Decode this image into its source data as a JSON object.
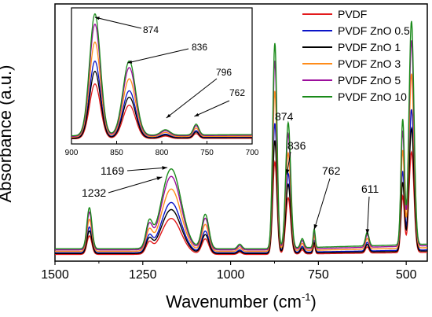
{
  "chart_data": {
    "type": "line",
    "xlabel": "Wavenumber",
    "xlabel_unit": "cm",
    "xlabel_unit_exp": "-1",
    "xlabel_close": ")",
    "ylabel": "Absorbance (a.u.)",
    "xlim": [
      1500,
      440
    ],
    "x_reversed": true,
    "x_ticks": [
      1500,
      1250,
      1000,
      750,
      500
    ],
    "y_ticks_shown": false,
    "legend_position": "top-right",
    "series": [
      {
        "name": "PVDF",
        "color": "#e31a1c",
        "scale": 0.45
      },
      {
        "name": "PVDF ZnO 0.5",
        "color": "#0a14c8",
        "scale": 0.63
      },
      {
        "name": "PVDF ZnO 1",
        "color": "#000000",
        "scale": 0.55
      },
      {
        "name": "PVDF ZnO 3",
        "color": "#ff8c1a",
        "scale": 0.78
      },
      {
        "name": "PVDF ZnO 5",
        "color": "#9c0e9c",
        "scale": 0.92
      },
      {
        "name": "PVDF ZnO 10",
        "color": "#1a8a1a",
        "scale": 1.0
      }
    ],
    "peaks": [
      {
        "x": 1402,
        "h": 0.18,
        "w": 7
      },
      {
        "x": 1232,
        "h": 0.1,
        "w": 9
      },
      {
        "x": 1169,
        "h": 0.35,
        "w": 28
      },
      {
        "x": 1072,
        "h": 0.15,
        "w": 10
      },
      {
        "x": 974,
        "h": 0.02,
        "w": 6
      },
      {
        "x": 874,
        "h": 0.9,
        "w": 6
      },
      {
        "x": 836,
        "h": 0.55,
        "w": 7
      },
      {
        "x": 796,
        "h": 0.04,
        "w": 5
      },
      {
        "x": 762,
        "h": 0.08,
        "w": 3
      },
      {
        "x": 611,
        "h": 0.06,
        "w": 5
      },
      {
        "x": 510,
        "h": 0.55,
        "w": 5
      },
      {
        "x": 485,
        "h": 0.98,
        "w": 7
      }
    ],
    "annotations": [
      {
        "label": "1232",
        "x": 1232
      },
      {
        "label": "1169",
        "x": 1169
      },
      {
        "label": "874",
        "x": 874
      },
      {
        "label": "836",
        "x": 836
      },
      {
        "label": "762",
        "x": 762
      },
      {
        "label": "611",
        "x": 611
      }
    ],
    "inset": {
      "xlim": [
        900,
        700
      ],
      "x_ticks": [
        900,
        850,
        800,
        750,
        700
      ],
      "annotations": [
        {
          "label": "874",
          "x": 874
        },
        {
          "label": "836",
          "x": 836
        },
        {
          "label": "796",
          "x": 796
        },
        {
          "label": "762",
          "x": 762
        }
      ]
    }
  }
}
